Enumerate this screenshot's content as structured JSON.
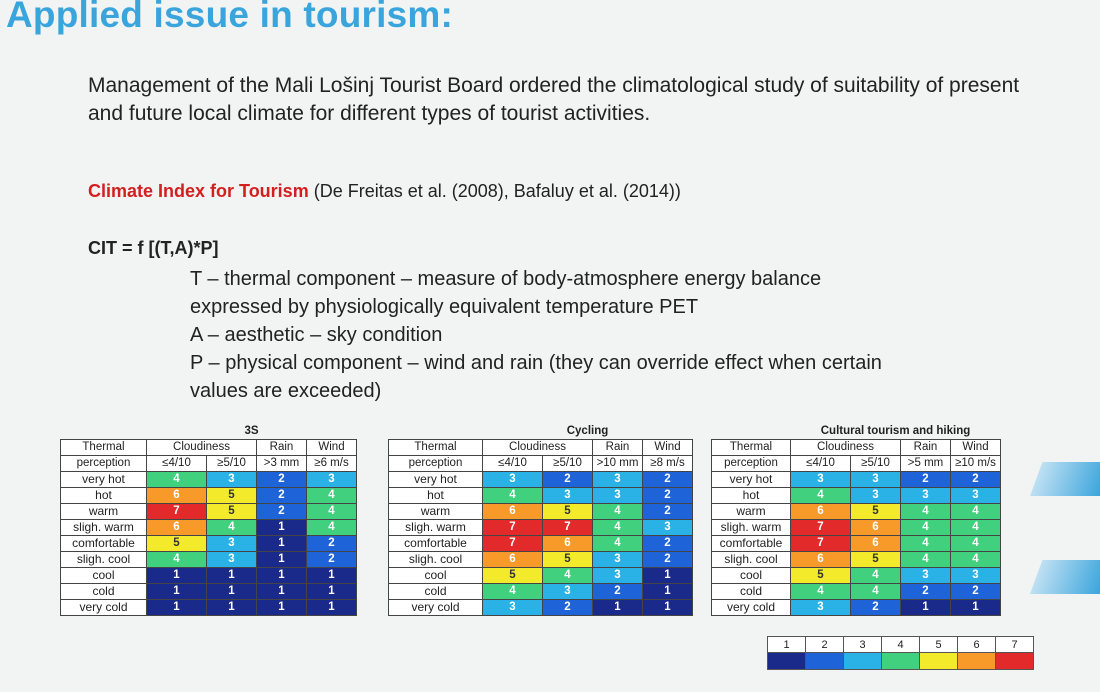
{
  "title": "Applied issue in tourism:",
  "intro": "Management of the Mali Lošinj Tourist Board ordered the climatological study of suitability of present and future local climate for different types of tourist activities.",
  "cit_name": "Climate Index for Tourism",
  "cit_refs": " (De Freitas et al. (2008), Bafaluy et al. (2014))",
  "formula": "CIT = f [(T,A)*P]",
  "definitions": [
    "T – thermal component – measure of body-atmosphere energy balance",
    "expressed by physiologically equivalent temperature PET",
    "A – aesthetic – sky condition",
    "P – physical component – wind and rain (they can override effect when certain",
    "values are exceeded)"
  ],
  "colors": {
    "1": "#1a2a8a",
    "2": "#1e63d8",
    "3": "#2ab2e6",
    "4": "#40d07e",
    "5": "#f3ea2c",
    "6": "#f79a2a",
    "7": "#e32a2a"
  },
  "row_labels": [
    "very hot",
    "hot",
    "warm",
    "sligh. warm",
    "comfortable",
    "sligh. cool",
    "cool",
    "cold",
    "very cold"
  ],
  "tables": [
    {
      "title": "3S",
      "thermal": "Thermal",
      "perception": "perception",
      "cloud_label": "Cloudiness",
      "rain_label": "Rain",
      "wind_label": "Wind",
      "sub": [
        "≤4/10",
        "≥5/10",
        ">3 mm",
        "≥6 m/s"
      ],
      "rows": [
        [
          4,
          3,
          2,
          3
        ],
        [
          6,
          5,
          2,
          4
        ],
        [
          7,
          5,
          2,
          4
        ],
        [
          6,
          4,
          1,
          4
        ],
        [
          5,
          3,
          1,
          2
        ],
        [
          4,
          3,
          1,
          2
        ],
        [
          1,
          1,
          1,
          1
        ],
        [
          1,
          1,
          1,
          1
        ],
        [
          1,
          1,
          1,
          1
        ]
      ]
    },
    {
      "title": "Cycling",
      "thermal": "Thermal",
      "perception": "perception",
      "cloud_label": "Cloudiness",
      "rain_label": "Rain",
      "wind_label": "Wind",
      "sub": [
        "≤4/10",
        "≥5/10",
        ">10 mm",
        "≥8 m/s"
      ],
      "rows": [
        [
          3,
          2,
          3,
          2
        ],
        [
          4,
          3,
          3,
          2
        ],
        [
          6,
          5,
          4,
          2
        ],
        [
          7,
          7,
          4,
          3
        ],
        [
          7,
          6,
          4,
          2
        ],
        [
          6,
          5,
          3,
          2
        ],
        [
          5,
          4,
          3,
          1
        ],
        [
          4,
          3,
          2,
          1
        ],
        [
          3,
          2,
          1,
          1
        ]
      ]
    },
    {
      "title": "Cultural tourism and hiking",
      "thermal": "Thermal",
      "perception": "perception",
      "cloud_label": "Cloudiness",
      "rain_label": "Rain",
      "wind_label": "Wind",
      "sub": [
        "≤4/10",
        "≥5/10",
        ">5 mm",
        "≥10 m/s"
      ],
      "rows": [
        [
          3,
          3,
          2,
          2
        ],
        [
          4,
          3,
          3,
          3
        ],
        [
          6,
          5,
          4,
          4
        ],
        [
          7,
          6,
          4,
          4
        ],
        [
          7,
          6,
          4,
          4
        ],
        [
          6,
          5,
          4,
          4
        ],
        [
          5,
          4,
          3,
          3
        ],
        [
          4,
          4,
          2,
          2
        ],
        [
          3,
          2,
          1,
          1
        ]
      ]
    }
  ],
  "legend": [
    "1",
    "2",
    "3",
    "4",
    "5",
    "6",
    "7"
  ]
}
